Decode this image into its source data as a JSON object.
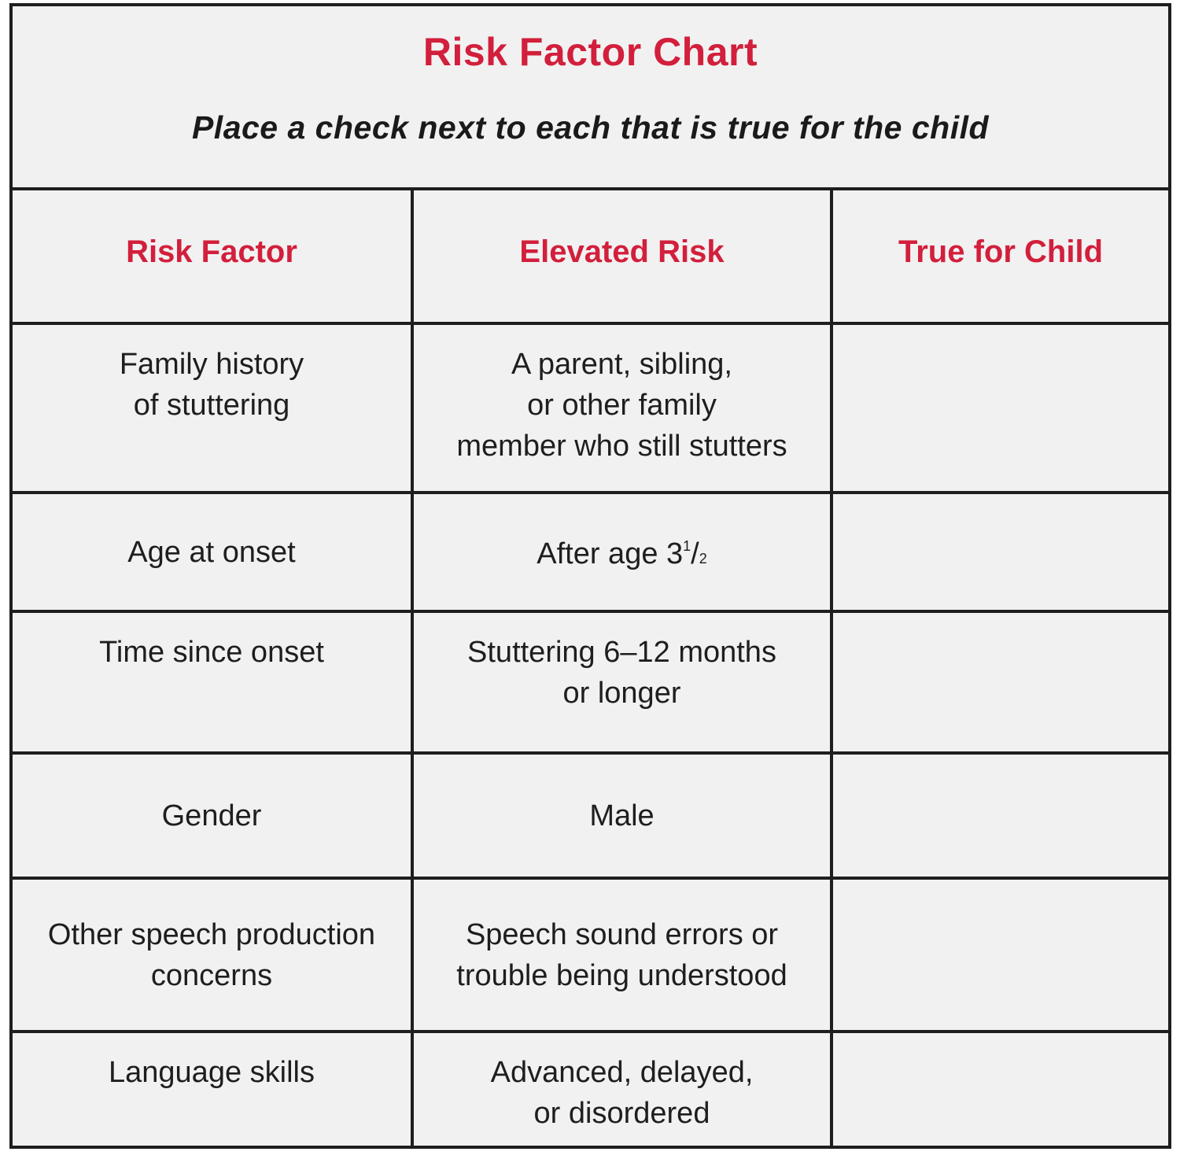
{
  "title": "Risk Factor Chart",
  "subtitle": "Place a check next to each that is true for the child",
  "columns": [
    "Risk Factor",
    "Elevated Risk",
    "True for Child"
  ],
  "rows": [
    {
      "factor": "Family history\nof stuttering",
      "risk": "A parent, sibling,\nor other family\nmember who still stutters",
      "true_for_child": ""
    },
    {
      "factor": "Age at onset",
      "risk_prefix": "After age 3",
      "risk_frac_num": "1",
      "risk_frac_slash": "/",
      "risk_frac_den": "2",
      "true_for_child": ""
    },
    {
      "factor": "Time since onset",
      "risk": "Stuttering 6–12 months\nor longer",
      "true_for_child": ""
    },
    {
      "factor": "Gender",
      "risk": "Male",
      "true_for_child": ""
    },
    {
      "factor": "Other speech production\nconcerns",
      "risk": "Speech sound errors or\ntrouble being understood",
      "true_for_child": ""
    },
    {
      "factor": "Language skills",
      "risk": "Advanced, delayed,\nor disordered",
      "true_for_child": ""
    }
  ]
}
